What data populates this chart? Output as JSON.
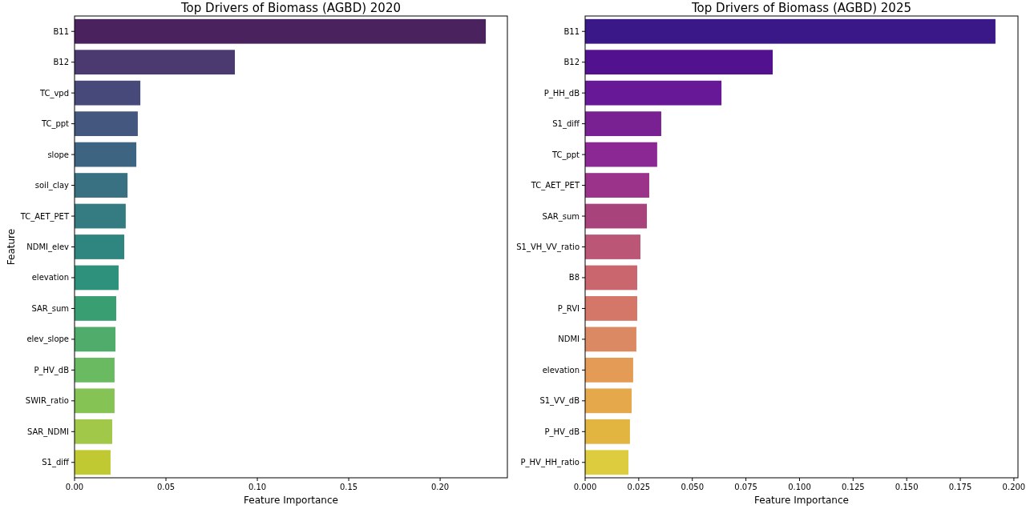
{
  "chart_data": [
    {
      "type": "bar",
      "orientation": "horizontal",
      "title": "Top Drivers of Biomass (AGBD) 2020",
      "xlabel": "Feature Importance",
      "ylabel": "Feature",
      "categories": [
        "B11",
        "B12",
        "TC_vpd",
        "TC_ppt",
        "slope",
        "soil_clay",
        "TC_AET_PET",
        "NDMI_elev",
        "elevation",
        "SAR_sum",
        "elev_slope",
        "P_HV_dB",
        "SWIR_ratio",
        "SAR_NDMI",
        "S1_diff"
      ],
      "values": [
        0.225,
        0.0877,
        0.036,
        0.0346,
        0.0338,
        0.029,
        0.028,
        0.0272,
        0.0241,
        0.0228,
        0.0224,
        0.0219,
        0.0219,
        0.0206,
        0.0197
      ],
      "colors": [
        "#4a235e",
        "#4a3a70",
        "#47497b",
        "#43577f",
        "#3d6581",
        "#397082",
        "#347b82",
        "#2f8580",
        "#2d917b",
        "#3a9e73",
        "#4fac6b",
        "#69ba61",
        "#85c355",
        "#a2c849",
        "#c0c932"
      ],
      "xlim": [
        0,
        0.2368
      ],
      "xticks": [
        {
          "value": 0,
          "label": "0.00"
        },
        {
          "value": 0.05,
          "label": "0.05"
        },
        {
          "value": 0.1,
          "label": "0.10"
        },
        {
          "value": 0.15,
          "label": "0.15"
        },
        {
          "value": 0.2,
          "label": "0.20"
        }
      ],
      "grid": false
    },
    {
      "type": "bar",
      "orientation": "horizontal",
      "title": "Top Drivers of Biomass (AGBD) 2025",
      "xlabel": "Feature Importance",
      "categories": [
        "B11",
        "B12",
        "P_HH_dB",
        "S1_diff",
        "TC_ppt",
        "TC_AET_PET",
        "SAR_sum",
        "S1_VH_VV_ratio",
        "B8",
        "P_RVI",
        "NDMI",
        "elevation",
        "S1_VV_dB",
        "P_HV_dB",
        "P_HV_HH_ratio"
      ],
      "values": [
        0.1914,
        0.0875,
        0.0636,
        0.0355,
        0.0336,
        0.0299,
        0.0288,
        0.0258,
        0.0243,
        0.0243,
        0.0239,
        0.0224,
        0.0217,
        0.0209,
        0.0202
      ],
      "colors": [
        "#3a1888",
        "#521290",
        "#661896",
        "#792093",
        "#8b2893",
        "#9a3389",
        "#a8437c",
        "#bb5677",
        "#c9666e",
        "#d57768",
        "#db8963",
        "#e39b55",
        "#e5a84b",
        "#e2b540",
        "#dccc3e"
      ],
      "xlim": [
        0,
        0.2019
      ],
      "xticks": [
        {
          "value": 0,
          "label": "0.000"
        },
        {
          "value": 0.025,
          "label": "0.025"
        },
        {
          "value": 0.05,
          "label": "0.050"
        },
        {
          "value": 0.075,
          "label": "0.075"
        },
        {
          "value": 0.1,
          "label": "0.100"
        },
        {
          "value": 0.125,
          "label": "0.125"
        },
        {
          "value": 0.15,
          "label": "0.150"
        },
        {
          "value": 0.175,
          "label": "0.175"
        },
        {
          "value": 0.2,
          "label": "0.200"
        }
      ],
      "grid": false
    }
  ]
}
